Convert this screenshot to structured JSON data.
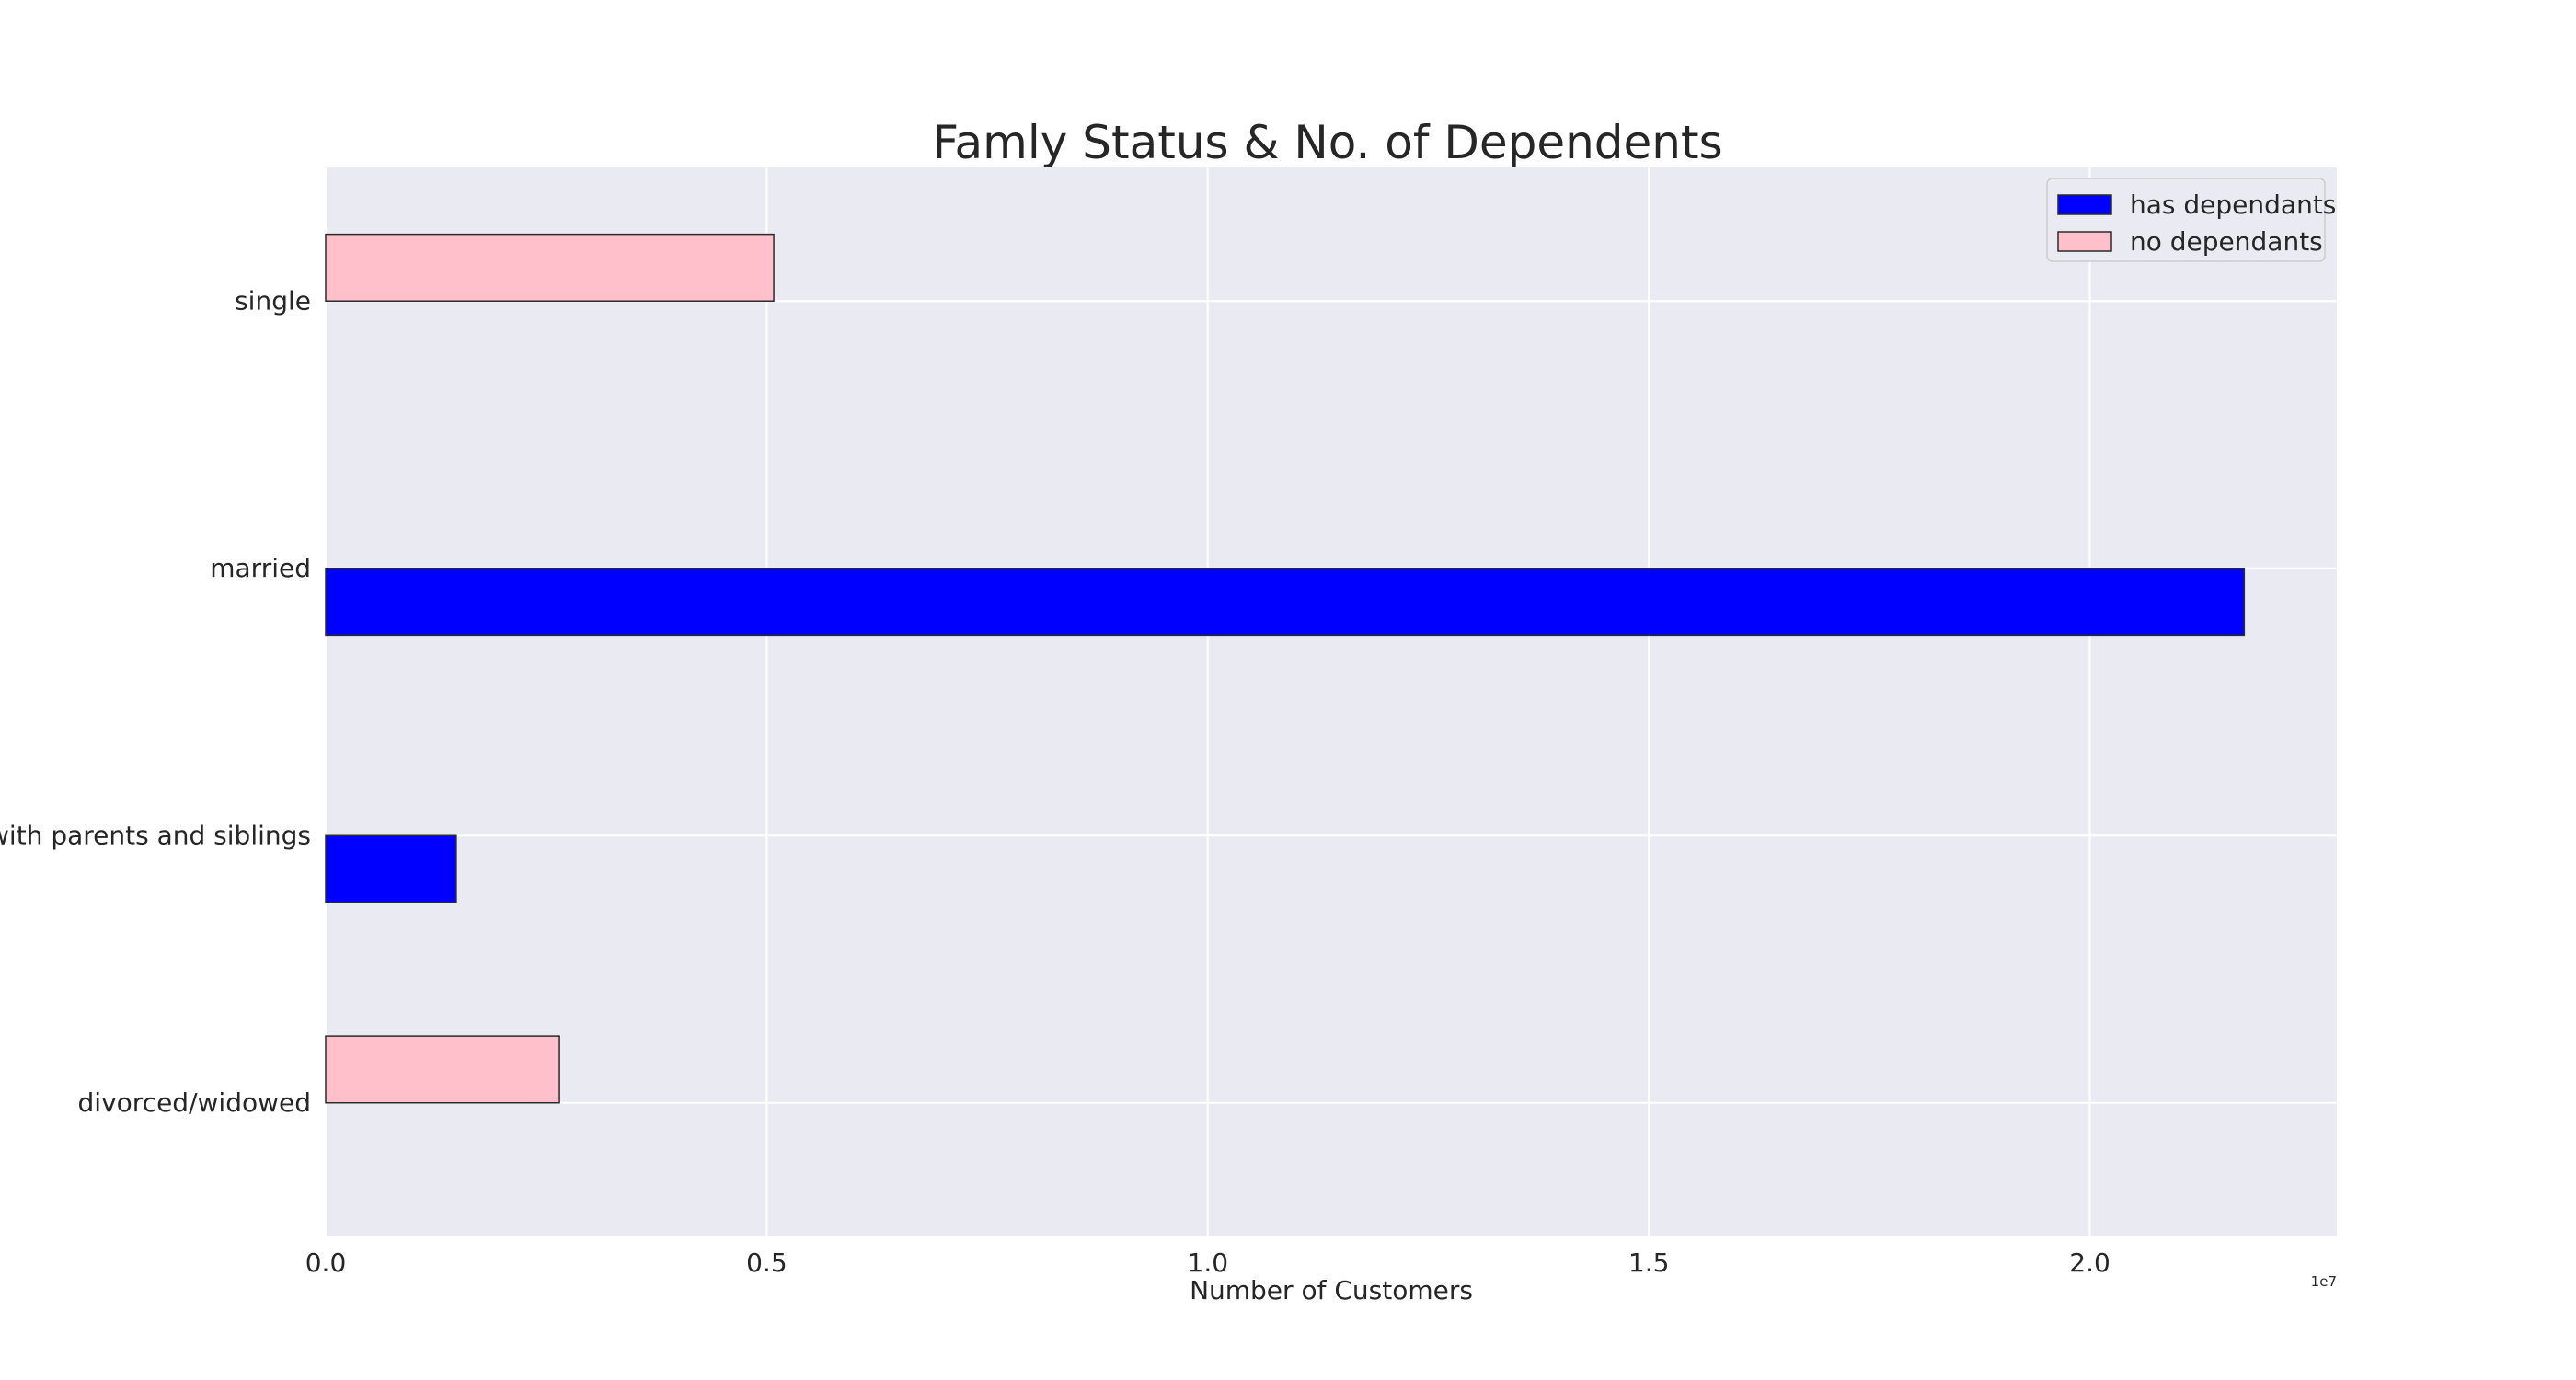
{
  "chart_data": {
    "type": "bar",
    "orientation": "horizontal",
    "title": "Famly Status & No. of Dependents",
    "xlabel": "Number  of Customers",
    "ylabel": "",
    "x_offset_label": "1e7",
    "xlim": [
      0,
      22800000
    ],
    "x_ticks": [
      0,
      5000000,
      10000000,
      15000000,
      20000000
    ],
    "x_tick_labels": [
      "0.0",
      "0.5",
      "1.0",
      "1.5",
      "2.0"
    ],
    "grid": true,
    "legend": "top-right",
    "categories": [
      "single",
      "married",
      "living with parents and siblings",
      "divorced/widowed"
    ],
    "series": [
      {
        "name": "has dependants",
        "color": "#0000ff",
        "values": [
          0,
          21750000,
          1480000,
          0
        ]
      },
      {
        "name": "no dependants",
        "color": "#ffc0cb",
        "values": [
          5080000,
          0,
          0,
          2650000
        ]
      }
    ],
    "colors": {
      "background": "#eaeaf2",
      "grid": "#ffffff",
      "bar_edge": "#2b2b2b",
      "text": "#262626"
    }
  }
}
